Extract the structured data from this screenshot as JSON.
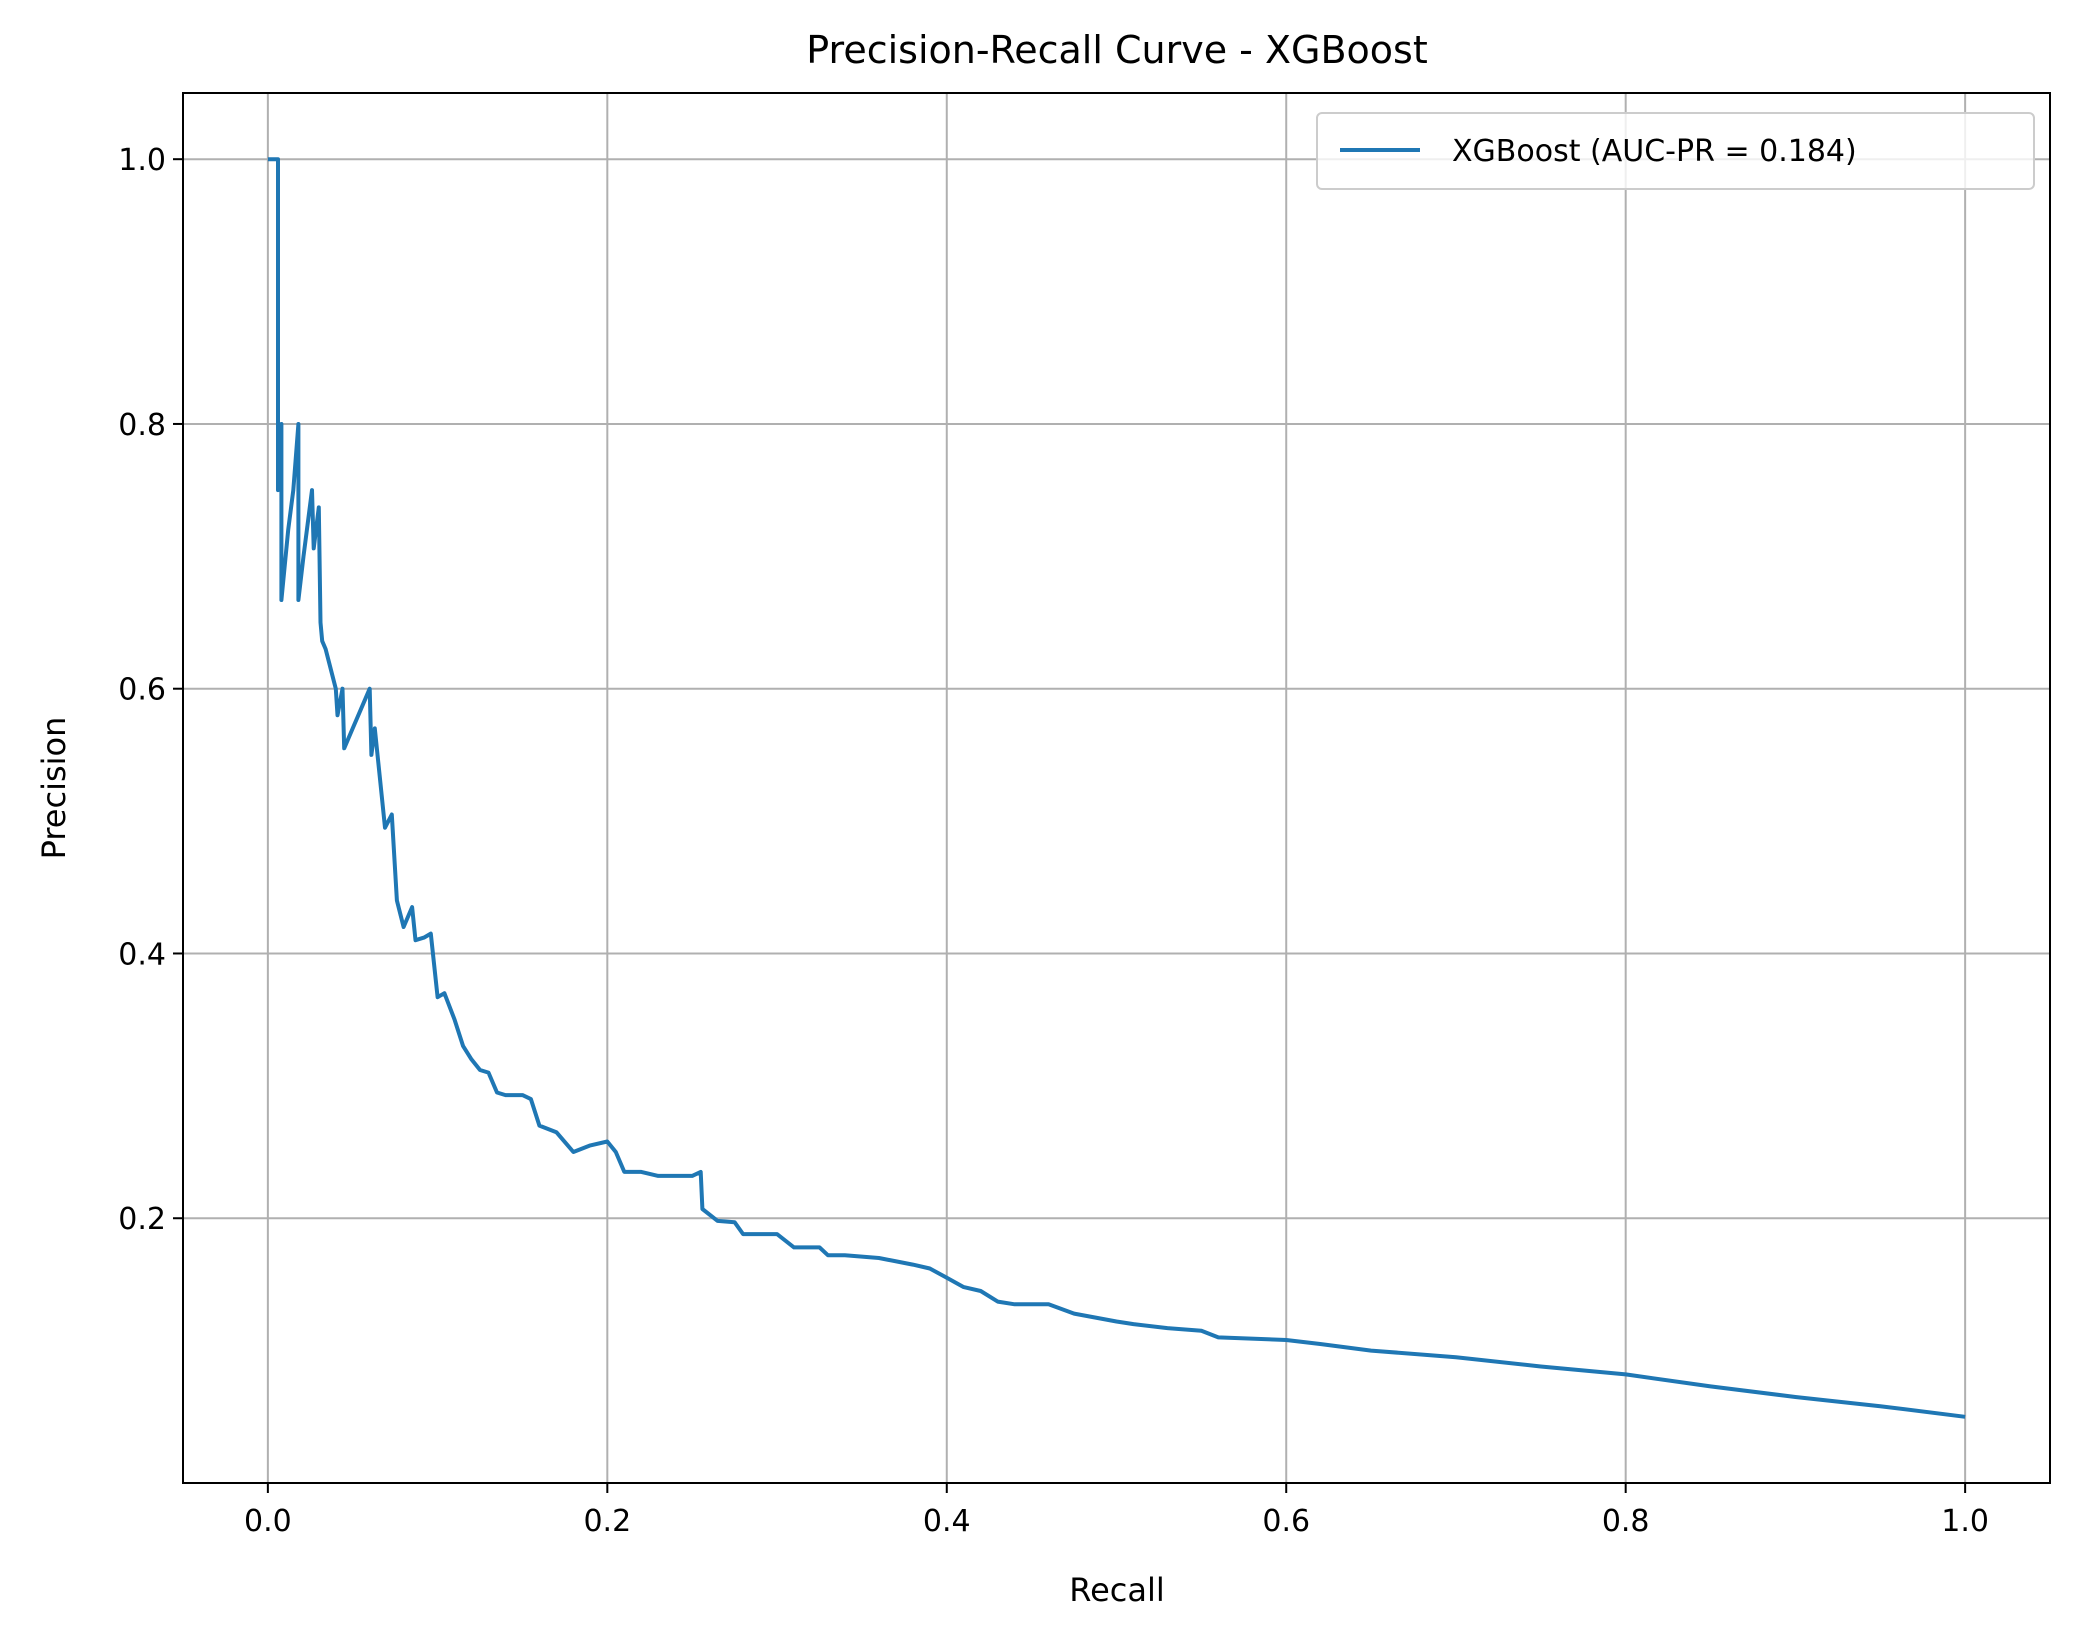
{
  "chart_data": {
    "type": "line",
    "title": "Precision-Recall Curve - XGBoost",
    "xlabel": "Recall",
    "ylabel": "Precision",
    "xlim": [
      -0.05,
      1.05
    ],
    "ylim": [
      0.0,
      1.05
    ],
    "grid": true,
    "legend_position": "top-right",
    "x_ticks": [
      "0.0",
      "0.2",
      "0.4",
      "0.6",
      "0.8",
      "1.0"
    ],
    "y_ticks": [
      "0.2",
      "0.4",
      "0.6",
      "0.8",
      "1.0"
    ],
    "series": [
      {
        "name": "XGBoost (AUC-PR = 0.184)",
        "color": "#1f77b4",
        "points": [
          [
            0.0,
            1.0
          ],
          [
            0.006,
            1.0
          ],
          [
            0.006,
            0.8
          ],
          [
            0.006,
            0.75
          ],
          [
            0.008,
            0.8
          ],
          [
            0.008,
            0.667
          ],
          [
            0.012,
            0.72
          ],
          [
            0.015,
            0.75
          ],
          [
            0.018,
            0.8
          ],
          [
            0.018,
            0.667
          ],
          [
            0.021,
            0.7
          ],
          [
            0.026,
            0.75
          ],
          [
            0.027,
            0.706
          ],
          [
            0.03,
            0.737
          ],
          [
            0.031,
            0.65
          ],
          [
            0.032,
            0.636
          ],
          [
            0.034,
            0.63
          ],
          [
            0.036,
            0.62
          ],
          [
            0.038,
            0.61
          ],
          [
            0.04,
            0.6
          ],
          [
            0.041,
            0.58
          ],
          [
            0.044,
            0.6
          ],
          [
            0.045,
            0.555
          ],
          [
            0.05,
            0.57
          ],
          [
            0.055,
            0.585
          ],
          [
            0.06,
            0.6
          ],
          [
            0.061,
            0.55
          ],
          [
            0.063,
            0.57
          ],
          [
            0.067,
            0.52
          ],
          [
            0.069,
            0.495
          ],
          [
            0.073,
            0.505
          ],
          [
            0.076,
            0.44
          ],
          [
            0.08,
            0.42
          ],
          [
            0.085,
            0.435
          ],
          [
            0.087,
            0.41
          ],
          [
            0.092,
            0.412
          ],
          [
            0.096,
            0.415
          ],
          [
            0.1,
            0.367
          ],
          [
            0.104,
            0.37
          ],
          [
            0.11,
            0.35
          ],
          [
            0.115,
            0.33
          ],
          [
            0.12,
            0.32
          ],
          [
            0.125,
            0.312
          ],
          [
            0.13,
            0.31
          ],
          [
            0.135,
            0.295
          ],
          [
            0.14,
            0.293
          ],
          [
            0.15,
            0.293
          ],
          [
            0.155,
            0.29
          ],
          [
            0.16,
            0.27
          ],
          [
            0.17,
            0.265
          ],
          [
            0.18,
            0.25
          ],
          [
            0.19,
            0.255
          ],
          [
            0.2,
            0.258
          ],
          [
            0.205,
            0.25
          ],
          [
            0.21,
            0.235
          ],
          [
            0.22,
            0.235
          ],
          [
            0.23,
            0.232
          ],
          [
            0.25,
            0.232
          ],
          [
            0.255,
            0.235
          ],
          [
            0.256,
            0.207
          ],
          [
            0.265,
            0.198
          ],
          [
            0.275,
            0.197
          ],
          [
            0.28,
            0.188
          ],
          [
            0.3,
            0.188
          ],
          [
            0.31,
            0.178
          ],
          [
            0.325,
            0.178
          ],
          [
            0.33,
            0.172
          ],
          [
            0.34,
            0.172
          ],
          [
            0.36,
            0.17
          ],
          [
            0.38,
            0.165
          ],
          [
            0.39,
            0.162
          ],
          [
            0.4,
            0.155
          ],
          [
            0.41,
            0.148
          ],
          [
            0.42,
            0.145
          ],
          [
            0.43,
            0.137
          ],
          [
            0.44,
            0.135
          ],
          [
            0.46,
            0.135
          ],
          [
            0.475,
            0.128
          ],
          [
            0.5,
            0.122
          ],
          [
            0.51,
            0.12
          ],
          [
            0.53,
            0.117
          ],
          [
            0.55,
            0.115
          ],
          [
            0.56,
            0.11
          ],
          [
            0.6,
            0.108
          ],
          [
            0.62,
            0.105
          ],
          [
            0.65,
            0.1
          ],
          [
            0.7,
            0.095
          ],
          [
            0.75,
            0.088
          ],
          [
            0.8,
            0.082
          ],
          [
            0.85,
            0.073
          ],
          [
            0.9,
            0.065
          ],
          [
            0.95,
            0.058
          ],
          [
            1.0,
            0.05
          ]
        ]
      }
    ]
  }
}
